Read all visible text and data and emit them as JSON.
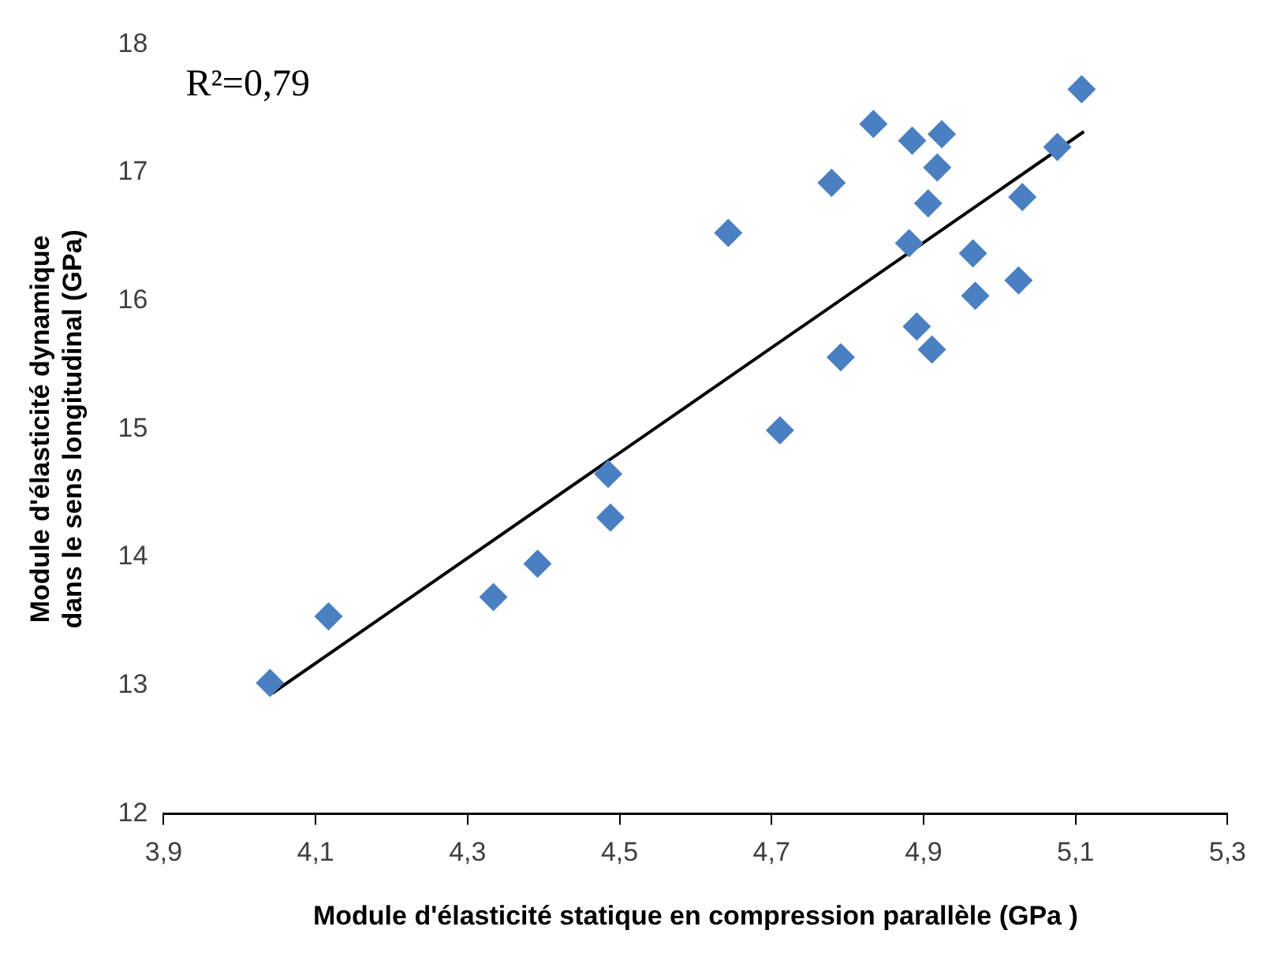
{
  "chart_data": {
    "type": "scatter",
    "xlabel": "Module d'élasticité statique en compression parallèle (GPa )",
    "ylabel": "Module d'élasticité dynamique dans le sens longitudinal (GPa)",
    "annotations": [
      "R²=0,79"
    ],
    "xlim": [
      3.9,
      5.3
    ],
    "xticks": [
      {
        "value": 3.9,
        "label": "3,9"
      },
      {
        "value": 4.1,
        "label": "4,1"
      },
      {
        "value": 4.3,
        "label": "4,3"
      },
      {
        "value": 4.5,
        "label": "4,5"
      },
      {
        "value": 4.7,
        "label": "4,7"
      },
      {
        "value": 4.9,
        "label": "4,9"
      },
      {
        "value": 5.1,
        "label": "5,1"
      },
      {
        "value": 5.3,
        "label": "5,3"
      }
    ],
    "ylim": [
      12,
      18
    ],
    "yticks": [
      12,
      13,
      14,
      15,
      16,
      17,
      18
    ],
    "grid": false,
    "legend": false,
    "marker": "diamond",
    "series": [
      {
        "color": "#4a7fc1",
        "x": [
          4.04,
          4.117,
          4.334,
          4.392,
          4.485,
          4.488,
          4.643,
          4.711,
          4.779,
          4.791,
          4.834,
          4.881,
          4.885,
          4.891,
          4.906,
          4.911,
          4.918,
          4.924,
          4.965,
          4.968,
          5.025,
          5.03,
          5.076,
          5.108
        ],
        "values": [
          13.02,
          13.54,
          13.69,
          13.95,
          14.65,
          14.31,
          16.53,
          14.99,
          16.92,
          15.56,
          17.38,
          16.45,
          17.25,
          15.8,
          16.76,
          15.62,
          17.04,
          17.3,
          16.37,
          16.04,
          16.16,
          16.81,
          17.2,
          17.65
        ]
      },
      {
        "type": "line",
        "color": "#000000",
        "marker": "none",
        "line_style": "solid",
        "x": [
          4.043,
          5.111
        ],
        "values": [
          12.94,
          17.32
        ]
      }
    ]
  }
}
